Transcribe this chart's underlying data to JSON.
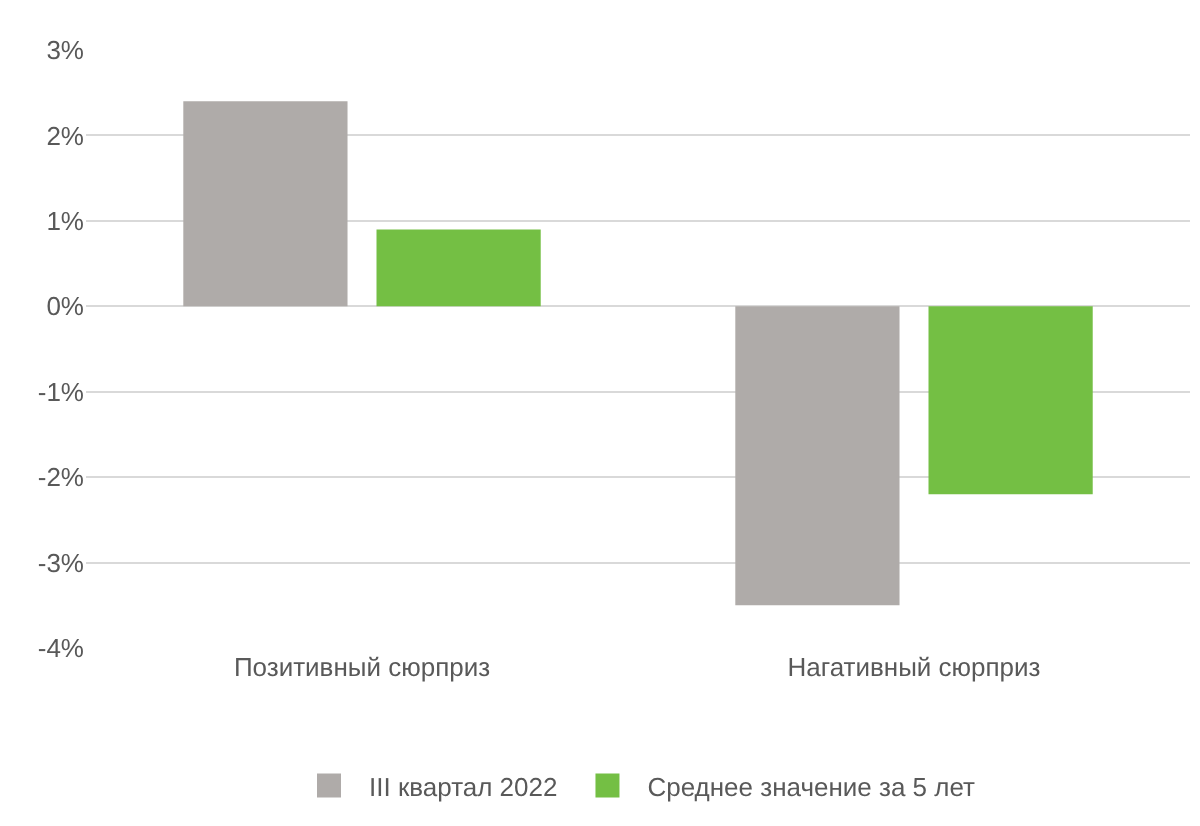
{
  "chart_data": {
    "type": "bar",
    "categories": [
      "Позитивный сюрприз",
      "Нагативный сюрприз"
    ],
    "series": [
      {
        "name": "III квартал 2022",
        "color": "#afaba9",
        "values": [
          2.4,
          -3.5
        ]
      },
      {
        "name": "Среднее значение за 5 лет",
        "color": "#74bf44",
        "values": [
          0.9,
          -2.2
        ]
      }
    ],
    "ylim": [
      -4,
      3
    ],
    "yticks": [
      {
        "value": -4,
        "label": "-4%"
      },
      {
        "value": -3,
        "label": "-3%"
      },
      {
        "value": -2,
        "label": "-2%"
      },
      {
        "value": -1,
        "label": "-1%"
      },
      {
        "value": 0,
        "label": "0%"
      },
      {
        "value": 1,
        "label": "1%"
      },
      {
        "value": 2,
        "label": "2%"
      },
      {
        "value": 3,
        "label": "3%"
      }
    ],
    "grid": "y",
    "legend": "bottom"
  }
}
